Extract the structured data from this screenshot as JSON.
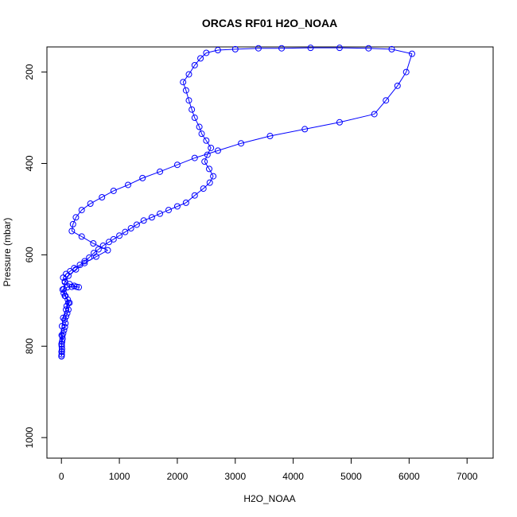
{
  "chart_data": {
    "type": "line",
    "title": "ORCAS RF01 H2O_NOAA",
    "xlabel": "H2O_NOAA",
    "ylabel": "Pressure (mbar)",
    "xlim": [
      -250,
      7450
    ],
    "ylim": [
      1045,
      145
    ],
    "y_reversed": true,
    "grid": false,
    "x_ticks": [
      0,
      1000,
      2000,
      3000,
      4000,
      5000,
      6000,
      7000
    ],
    "y_ticks": [
      200,
      400,
      600,
      800,
      1000
    ],
    "series": [
      {
        "color": "#0000ff",
        "marker": "open-circle",
        "points": [
          [
            2,
            822
          ],
          [
            5,
            818
          ],
          [
            8,
            812
          ],
          [
            10,
            806
          ],
          [
            6,
            800
          ],
          [
            3,
            795
          ],
          [
            12,
            790
          ],
          [
            20,
            784
          ],
          [
            15,
            778
          ],
          [
            30,
            772
          ],
          [
            45,
            765
          ],
          [
            60,
            758
          ],
          [
            70,
            750
          ],
          [
            55,
            742
          ],
          [
            80,
            735
          ],
          [
            100,
            728
          ],
          [
            120,
            720
          ],
          [
            90,
            712
          ],
          [
            140,
            705
          ],
          [
            110,
            698
          ],
          [
            60,
            690
          ],
          [
            40,
            684
          ],
          [
            20,
            676
          ],
          [
            100,
            671
          ],
          [
            180,
            670
          ],
          [
            260,
            670
          ],
          [
            300,
            671
          ],
          [
            220,
            668
          ],
          [
            140,
            664
          ],
          [
            60,
            658
          ],
          [
            30,
            650
          ],
          [
            80,
            642
          ],
          [
            150,
            636
          ],
          [
            220,
            629
          ],
          [
            320,
            622
          ],
          [
            400,
            614
          ],
          [
            480,
            606
          ],
          [
            560,
            596
          ],
          [
            640,
            588
          ],
          [
            720,
            580
          ],
          [
            820,
            572
          ],
          [
            900,
            566
          ],
          [
            1000,
            558
          ],
          [
            1100,
            550
          ],
          [
            1200,
            542
          ],
          [
            1300,
            534
          ],
          [
            1420,
            525
          ],
          [
            1560,
            518
          ],
          [
            1700,
            510
          ],
          [
            1850,
            502
          ],
          [
            2000,
            494
          ],
          [
            2150,
            486
          ],
          [
            2300,
            470
          ],
          [
            2450,
            455
          ],
          [
            2560,
            442
          ],
          [
            2620,
            428
          ],
          [
            2550,
            412
          ],
          [
            2470,
            396
          ],
          [
            2520,
            381
          ],
          [
            2580,
            366
          ],
          [
            2500,
            350
          ],
          [
            2420,
            335
          ],
          [
            2380,
            320
          ],
          [
            2300,
            300
          ],
          [
            2250,
            282
          ],
          [
            2200,
            262
          ],
          [
            2150,
            240
          ],
          [
            2100,
            222
          ],
          [
            2200,
            205
          ],
          [
            2300,
            185
          ],
          [
            2400,
            170
          ],
          [
            2500,
            158
          ],
          [
            2700,
            152
          ],
          [
            3000,
            150
          ],
          [
            3400,
            148
          ],
          [
            3800,
            148
          ],
          [
            4300,
            147
          ],
          [
            4800,
            147
          ],
          [
            5300,
            148
          ],
          [
            5700,
            150
          ],
          [
            6050,
            160
          ],
          [
            5950,
            200
          ],
          [
            5800,
            230
          ],
          [
            5600,
            262
          ],
          [
            5400,
            292
          ],
          [
            4800,
            310
          ],
          [
            4200,
            325
          ],
          [
            3600,
            340
          ],
          [
            3100,
            356
          ],
          [
            2700,
            372
          ],
          [
            2300,
            388
          ],
          [
            2000,
            403
          ],
          [
            1700,
            418
          ],
          [
            1400,
            432
          ],
          [
            1150,
            447
          ],
          [
            900,
            460
          ],
          [
            700,
            474
          ],
          [
            500,
            488
          ],
          [
            350,
            502
          ],
          [
            250,
            518
          ],
          [
            200,
            533
          ],
          [
            180,
            548
          ],
          [
            350,
            560
          ],
          [
            550,
            575
          ],
          [
            800,
            590
          ],
          [
            600,
            604
          ],
          [
            400,
            618
          ],
          [
            250,
            632
          ],
          [
            120,
            646
          ],
          [
            60,
            660
          ],
          [
            40,
            675
          ],
          [
            70,
            690
          ],
          [
            120,
            705
          ],
          [
            80,
            720
          ],
          [
            30,
            738
          ],
          [
            10,
            756
          ],
          [
            5,
            776
          ],
          [
            3,
            796
          ],
          [
            2,
            812
          ],
          [
            1,
            822
          ]
        ]
      }
    ]
  }
}
